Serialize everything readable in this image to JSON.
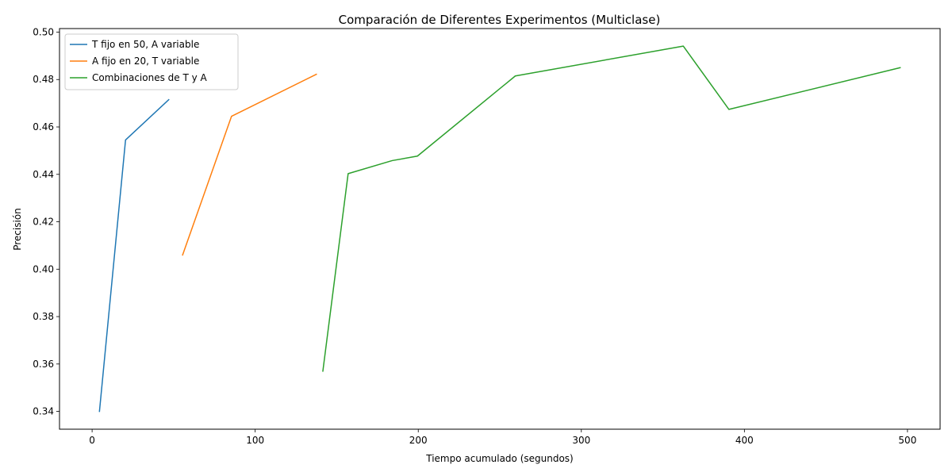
{
  "chart_data": {
    "type": "line",
    "title": "Comparación de Diferentes Experimentos (Multiclase)",
    "xlabel": "Tiempo acumulado (segundos)",
    "ylabel": "Precisión",
    "xlim": [
      -20,
      520
    ],
    "ylim": [
      0.3325,
      0.5015
    ],
    "xticks": [
      0,
      100,
      200,
      300,
      400,
      500
    ],
    "xtick_labels": [
      "0",
      "100",
      "200",
      "300",
      "400",
      "500"
    ],
    "yticks": [
      0.34,
      0.36,
      0.38,
      0.4,
      0.42,
      0.44,
      0.46,
      0.48,
      0.5
    ],
    "ytick_labels": [
      "0.34",
      "0.36",
      "0.38",
      "0.40",
      "0.42",
      "0.44",
      "0.46",
      "0.48",
      "0.50"
    ],
    "grid": false,
    "legend_position": "upper-left",
    "series": [
      {
        "name": "T fijo en 50, A variable",
        "color": "#1f77b4",
        "x": [
          4.5,
          20.5,
          47
        ],
        "y": [
          0.34,
          0.4545,
          0.4715
        ]
      },
      {
        "name": "A fijo en 20, T variable",
        "color": "#ff7f0e",
        "x": [
          55.5,
          85.5,
          137.5
        ],
        "y": [
          0.406,
          0.4645,
          0.4822
        ]
      },
      {
        "name": "Combinaciones de T y A",
        "color": "#2ca02c",
        "x": [
          141.5,
          157,
          184,
          199.5,
          259.5,
          362.5,
          390.5,
          495.5
        ],
        "y": [
          0.357,
          0.4403,
          0.4458,
          0.4477,
          0.4815,
          0.4941,
          0.4674,
          0.485
        ]
      }
    ]
  }
}
